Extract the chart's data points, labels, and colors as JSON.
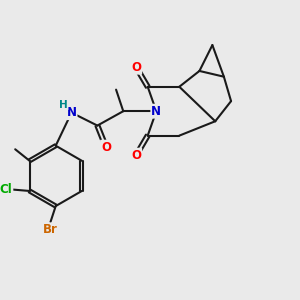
{
  "bg_color": "#eaeaea",
  "bond_color": "#1a1a1a",
  "bond_width": 1.5,
  "atom_colors": {
    "O": "#ff0000",
    "N": "#0000cc",
    "Cl": "#00aa00",
    "Br": "#cc6600",
    "H": "#008888",
    "C": "#1a1a1a"
  },
  "fs": 8.5
}
